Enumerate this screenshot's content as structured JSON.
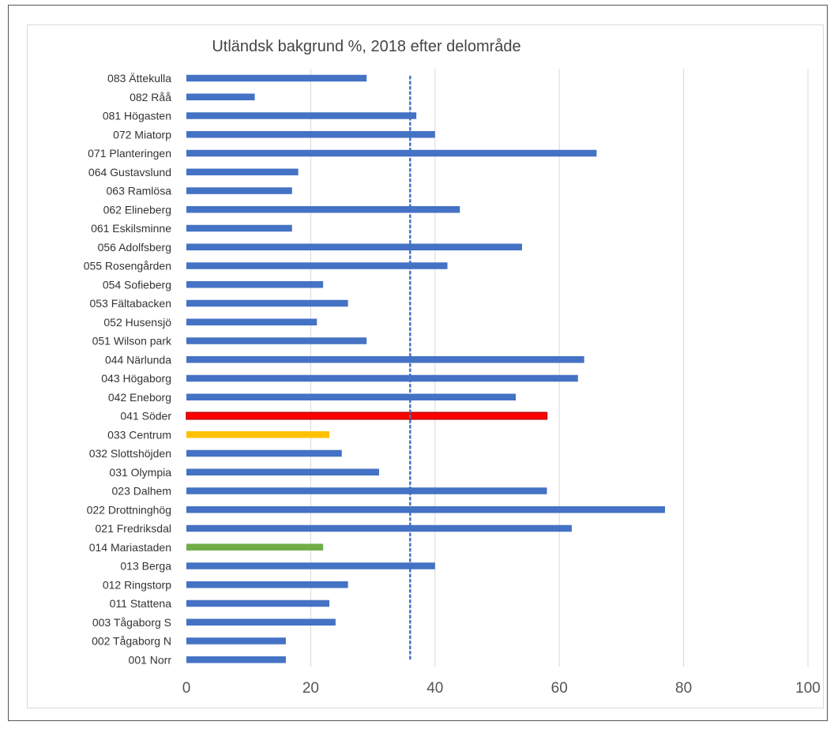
{
  "chart_data": {
    "type": "bar",
    "orientation": "horizontal",
    "title": "Utländsk bakgrund  %, 2018 efter delområde",
    "xlabel": "",
    "ylabel": "",
    "xlim": [
      0,
      100
    ],
    "x_ticks": [
      "0",
      "20",
      "40",
      "60",
      "80",
      "100"
    ],
    "grid": "vertical",
    "legend": "none",
    "reference_line": {
      "value": 36,
      "style": "dotted",
      "color": "#4472c4"
    },
    "default_color": "#4472c4",
    "categories": [
      "083 Ättekulla",
      "082 Råå",
      "081 Högasten",
      "072 Miatorp",
      "071 Planteringen",
      "064 Gustavslund",
      "063 Ramlösa",
      "062 Elineberg",
      "061 Eskilsminne",
      "056 Adolfsberg",
      "055 Rosengården",
      "054 Sofieberg",
      "053 Fältabacken",
      "052 Husensjö",
      "051 Wilson park",
      "044 Närlunda",
      "043 Högaborg",
      "042 Eneborg",
      "041 Söder",
      "033 Centrum",
      "032 Slottshöjden",
      "031 Olympia",
      "023 Dalhem",
      "022 Drottninghög",
      "021 Fredriksdal",
      "014 Mariastaden",
      "013 Berga",
      "012 Ringstorp",
      "011 Stattena",
      "003 Tågaborg S",
      "002 Tågaborg N",
      "001 Norr"
    ],
    "values": [
      29,
      11,
      37,
      40,
      66,
      18,
      17,
      44,
      17,
      54,
      42,
      22,
      26,
      21,
      29,
      64,
      63,
      53,
      58,
      23,
      25,
      31,
      58,
      77,
      62,
      22,
      40,
      26,
      23,
      24,
      16,
      16
    ],
    "highlights": [
      {
        "category": "041 Söder",
        "color": "#ff0000",
        "stroke": "#c00000"
      },
      {
        "category": "033 Centrum",
        "color": "#ffc000"
      },
      {
        "category": "014 Mariastaden",
        "color": "#70ad47"
      }
    ]
  }
}
